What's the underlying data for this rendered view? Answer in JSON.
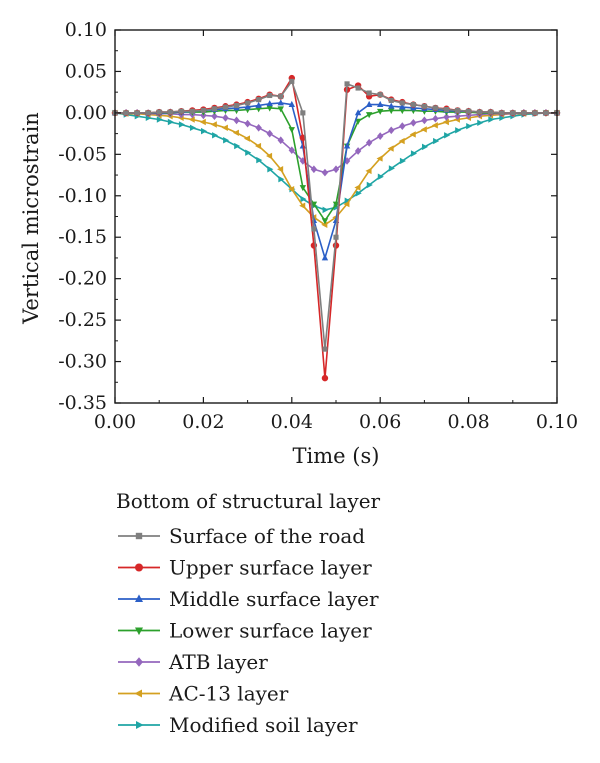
{
  "chart_data": {
    "type": "line",
    "xlabel": "Time (s)",
    "ylabel": "Vertical microstrain",
    "xlim": [
      0.0,
      0.1
    ],
    "ylim": [
      -0.35,
      0.1
    ],
    "xticks": [
      "0.00",
      "0.02",
      "0.04",
      "0.06",
      "0.08",
      "0.10"
    ],
    "yticks": [
      "0.10",
      "0.05",
      "0.00",
      "-0.05",
      "-0.10",
      "-0.15",
      "-0.20",
      "-0.25",
      "-0.30",
      "-0.35"
    ],
    "grid": false,
    "legend_title": "Bottom of structural layer",
    "legend_position": "below",
    "series": [
      {
        "name": "Surface of the road",
        "color": "#7f7f7f",
        "marker": "square",
        "points": [
          [
            0.0,
            0.0
          ],
          [
            0.0025,
            0.0
          ],
          [
            0.005,
            0.0
          ],
          [
            0.0075,
            0.0
          ],
          [
            0.01,
            0.001
          ],
          [
            0.0125,
            0.001
          ],
          [
            0.015,
            0.002
          ],
          [
            0.0175,
            0.002
          ],
          [
            0.02,
            0.003
          ],
          [
            0.0225,
            0.005
          ],
          [
            0.025,
            0.007
          ],
          [
            0.0275,
            0.009
          ],
          [
            0.03,
            0.012
          ],
          [
            0.0325,
            0.016
          ],
          [
            0.035,
            0.021
          ],
          [
            0.0375,
            0.02
          ],
          [
            0.04,
            0.038
          ],
          [
            0.0425,
            0.0
          ],
          [
            0.045,
            -0.14
          ],
          [
            0.0475,
            -0.285
          ],
          [
            0.05,
            -0.15
          ],
          [
            0.0525,
            0.035
          ],
          [
            0.055,
            0.03
          ],
          [
            0.0575,
            0.024
          ],
          [
            0.06,
            0.022
          ],
          [
            0.0625,
            0.015
          ],
          [
            0.065,
            0.012
          ],
          [
            0.0675,
            0.01
          ],
          [
            0.07,
            0.008
          ],
          [
            0.0725,
            0.006
          ],
          [
            0.075,
            0.004
          ],
          [
            0.0775,
            0.003
          ],
          [
            0.08,
            0.002
          ],
          [
            0.0825,
            0.001
          ],
          [
            0.085,
            0.001
          ],
          [
            0.0875,
            0.0
          ],
          [
            0.09,
            0.0
          ],
          [
            0.0925,
            0.0
          ],
          [
            0.095,
            0.0
          ],
          [
            0.0975,
            0.0
          ],
          [
            0.1,
            0.0
          ]
        ]
      },
      {
        "name": "Upper surface layer",
        "color": "#d62728",
        "marker": "circle",
        "points": [
          [
            0.0,
            0.0
          ],
          [
            0.0025,
            0.0
          ],
          [
            0.005,
            0.0
          ],
          [
            0.0075,
            0.0
          ],
          [
            0.01,
            0.001
          ],
          [
            0.0125,
            0.001
          ],
          [
            0.015,
            0.002
          ],
          [
            0.0175,
            0.003
          ],
          [
            0.02,
            0.004
          ],
          [
            0.0225,
            0.006
          ],
          [
            0.025,
            0.008
          ],
          [
            0.0275,
            0.01
          ],
          [
            0.03,
            0.013
          ],
          [
            0.0325,
            0.017
          ],
          [
            0.035,
            0.022
          ],
          [
            0.0375,
            0.02
          ],
          [
            0.04,
            0.042
          ],
          [
            0.0425,
            -0.03
          ],
          [
            0.045,
            -0.16
          ],
          [
            0.0475,
            -0.32
          ],
          [
            0.05,
            -0.16
          ],
          [
            0.0525,
            0.028
          ],
          [
            0.055,
            0.033
          ],
          [
            0.0575,
            0.02
          ],
          [
            0.06,
            0.022
          ],
          [
            0.0625,
            0.016
          ],
          [
            0.065,
            0.013
          ],
          [
            0.0675,
            0.01
          ],
          [
            0.07,
            0.008
          ],
          [
            0.0725,
            0.006
          ],
          [
            0.075,
            0.005
          ],
          [
            0.0775,
            0.003
          ],
          [
            0.08,
            0.002
          ],
          [
            0.0825,
            0.001
          ],
          [
            0.085,
            0.001
          ],
          [
            0.0875,
            0.0
          ],
          [
            0.09,
            0.0
          ],
          [
            0.0925,
            0.0
          ],
          [
            0.095,
            0.0
          ],
          [
            0.0975,
            0.0
          ],
          [
            0.1,
            0.0
          ]
        ]
      },
      {
        "name": "Middle surface layer",
        "color": "#2b5fc7",
        "marker": "triangle-up",
        "points": [
          [
            0.0,
            0.0
          ],
          [
            0.0025,
            0.0
          ],
          [
            0.005,
            0.0
          ],
          [
            0.0075,
            0.0
          ],
          [
            0.01,
            0.0
          ],
          [
            0.0125,
            0.001
          ],
          [
            0.015,
            0.001
          ],
          [
            0.0175,
            0.002
          ],
          [
            0.02,
            0.003
          ],
          [
            0.0225,
            0.004
          ],
          [
            0.025,
            0.005
          ],
          [
            0.0275,
            0.006
          ],
          [
            0.03,
            0.007
          ],
          [
            0.0325,
            0.009
          ],
          [
            0.035,
            0.011
          ],
          [
            0.0375,
            0.012
          ],
          [
            0.04,
            0.01
          ],
          [
            0.0425,
            -0.04
          ],
          [
            0.045,
            -0.13
          ],
          [
            0.0475,
            -0.175
          ],
          [
            0.05,
            -0.13
          ],
          [
            0.0525,
            -0.04
          ],
          [
            0.055,
            0.0
          ],
          [
            0.0575,
            0.01
          ],
          [
            0.06,
            0.01
          ],
          [
            0.0625,
            0.008
          ],
          [
            0.065,
            0.007
          ],
          [
            0.0675,
            0.006
          ],
          [
            0.07,
            0.005
          ],
          [
            0.0725,
            0.004
          ],
          [
            0.075,
            0.003
          ],
          [
            0.0775,
            0.002
          ],
          [
            0.08,
            0.002
          ],
          [
            0.0825,
            0.001
          ],
          [
            0.085,
            0.001
          ],
          [
            0.0875,
            0.0
          ],
          [
            0.09,
            0.0
          ],
          [
            0.0925,
            0.0
          ],
          [
            0.095,
            0.0
          ],
          [
            0.0975,
            0.0
          ],
          [
            0.1,
            0.0
          ]
        ]
      },
      {
        "name": "Lower surface layer",
        "color": "#2ca02c",
        "marker": "triangle-down",
        "points": [
          [
            0.0,
            0.0
          ],
          [
            0.0025,
            0.0
          ],
          [
            0.005,
            0.0
          ],
          [
            0.0075,
            0.0
          ],
          [
            0.01,
            0.0
          ],
          [
            0.0125,
            0.0
          ],
          [
            0.015,
            0.001
          ],
          [
            0.0175,
            0.001
          ],
          [
            0.02,
            0.001
          ],
          [
            0.0225,
            0.002
          ],
          [
            0.025,
            0.003
          ],
          [
            0.0275,
            0.003
          ],
          [
            0.03,
            0.004
          ],
          [
            0.0325,
            0.005
          ],
          [
            0.035,
            0.006
          ],
          [
            0.0375,
            0.005
          ],
          [
            0.04,
            -0.02
          ],
          [
            0.0425,
            -0.09
          ],
          [
            0.045,
            -0.11
          ],
          [
            0.0475,
            -0.13
          ],
          [
            0.05,
            -0.11
          ],
          [
            0.0525,
            -0.04
          ],
          [
            0.055,
            -0.01
          ],
          [
            0.0575,
            -0.002
          ],
          [
            0.06,
            0.002
          ],
          [
            0.0625,
            0.003
          ],
          [
            0.065,
            0.003
          ],
          [
            0.0675,
            0.003
          ],
          [
            0.07,
            0.002
          ],
          [
            0.0725,
            0.002
          ],
          [
            0.075,
            0.001
          ],
          [
            0.0775,
            0.001
          ],
          [
            0.08,
            0.001
          ],
          [
            0.0825,
            0.0
          ],
          [
            0.085,
            0.0
          ],
          [
            0.0875,
            0.0
          ],
          [
            0.09,
            0.0
          ],
          [
            0.0925,
            0.0
          ],
          [
            0.095,
            0.0
          ],
          [
            0.0975,
            0.0
          ],
          [
            0.1,
            0.0
          ]
        ]
      },
      {
        "name": "ATB layer",
        "color": "#9467bd",
        "marker": "diamond",
        "points": [
          [
            0.0,
            0.0
          ],
          [
            0.0025,
            0.0
          ],
          [
            0.005,
            0.0
          ],
          [
            0.0075,
            -0.001
          ],
          [
            0.01,
            -0.001
          ],
          [
            0.0125,
            -0.001
          ],
          [
            0.015,
            -0.002
          ],
          [
            0.0175,
            -0.002
          ],
          [
            0.02,
            -0.003
          ],
          [
            0.0225,
            -0.004
          ],
          [
            0.025,
            -0.006
          ],
          [
            0.0275,
            -0.009
          ],
          [
            0.03,
            -0.013
          ],
          [
            0.0325,
            -0.018
          ],
          [
            0.035,
            -0.025
          ],
          [
            0.0375,
            -0.033
          ],
          [
            0.04,
            -0.045
          ],
          [
            0.0425,
            -0.058
          ],
          [
            0.045,
            -0.068
          ],
          [
            0.0475,
            -0.072
          ],
          [
            0.05,
            -0.068
          ],
          [
            0.0525,
            -0.058
          ],
          [
            0.055,
            -0.046
          ],
          [
            0.0575,
            -0.036
          ],
          [
            0.06,
            -0.028
          ],
          [
            0.0625,
            -0.021
          ],
          [
            0.065,
            -0.016
          ],
          [
            0.0675,
            -0.012
          ],
          [
            0.07,
            -0.009
          ],
          [
            0.0725,
            -0.007
          ],
          [
            0.075,
            -0.005
          ],
          [
            0.0775,
            -0.004
          ],
          [
            0.08,
            -0.003
          ],
          [
            0.0825,
            -0.002
          ],
          [
            0.085,
            -0.001
          ],
          [
            0.0875,
            -0.001
          ],
          [
            0.09,
            -0.001
          ],
          [
            0.0925,
            0.0
          ],
          [
            0.095,
            0.0
          ],
          [
            0.0975,
            0.0
          ],
          [
            0.1,
            0.0
          ]
        ]
      },
      {
        "name": "AC-13 layer",
        "color": "#d4a020",
        "marker": "triangle-left",
        "points": [
          [
            0.0,
            0.0
          ],
          [
            0.0025,
            -0.001
          ],
          [
            0.005,
            -0.001
          ],
          [
            0.0075,
            -0.002
          ],
          [
            0.01,
            -0.003
          ],
          [
            0.0125,
            -0.004
          ],
          [
            0.015,
            -0.006
          ],
          [
            0.0175,
            -0.008
          ],
          [
            0.02,
            -0.011
          ],
          [
            0.0225,
            -0.014
          ],
          [
            0.025,
            -0.018
          ],
          [
            0.0275,
            -0.024
          ],
          [
            0.03,
            -0.031
          ],
          [
            0.0325,
            -0.04
          ],
          [
            0.035,
            -0.052
          ],
          [
            0.0375,
            -0.068
          ],
          [
            0.04,
            -0.092
          ],
          [
            0.0425,
            -0.112
          ],
          [
            0.045,
            -0.126
          ],
          [
            0.0475,
            -0.135
          ],
          [
            0.05,
            -0.126
          ],
          [
            0.0525,
            -0.11
          ],
          [
            0.055,
            -0.09
          ],
          [
            0.0575,
            -0.07
          ],
          [
            0.06,
            -0.055
          ],
          [
            0.0625,
            -0.043
          ],
          [
            0.065,
            -0.034
          ],
          [
            0.0675,
            -0.026
          ],
          [
            0.07,
            -0.02
          ],
          [
            0.0725,
            -0.015
          ],
          [
            0.075,
            -0.011
          ],
          [
            0.0775,
            -0.008
          ],
          [
            0.08,
            -0.006
          ],
          [
            0.0825,
            -0.004
          ],
          [
            0.085,
            -0.003
          ],
          [
            0.0875,
            -0.002
          ],
          [
            0.09,
            -0.001
          ],
          [
            0.0925,
            -0.001
          ],
          [
            0.095,
            0.0
          ],
          [
            0.0975,
            0.0
          ],
          [
            0.1,
            0.0
          ]
        ]
      },
      {
        "name": "Modified soil layer",
        "color": "#1fa5a5",
        "marker": "triangle-right",
        "points": [
          [
            0.0,
            0.0
          ],
          [
            0.0025,
            -0.002
          ],
          [
            0.005,
            -0.004
          ],
          [
            0.0075,
            -0.006
          ],
          [
            0.01,
            -0.008
          ],
          [
            0.0125,
            -0.011
          ],
          [
            0.015,
            -0.014
          ],
          [
            0.0175,
            -0.018
          ],
          [
            0.02,
            -0.022
          ],
          [
            0.0225,
            -0.027
          ],
          [
            0.025,
            -0.033
          ],
          [
            0.0275,
            -0.04
          ],
          [
            0.03,
            -0.048
          ],
          [
            0.0325,
            -0.057
          ],
          [
            0.035,
            -0.068
          ],
          [
            0.0375,
            -0.08
          ],
          [
            0.04,
            -0.092
          ],
          [
            0.0425,
            -0.104
          ],
          [
            0.045,
            -0.112
          ],
          [
            0.0475,
            -0.117
          ],
          [
            0.05,
            -0.114
          ],
          [
            0.0525,
            -0.106
          ],
          [
            0.055,
            -0.097
          ],
          [
            0.0575,
            -0.087
          ],
          [
            0.06,
            -0.077
          ],
          [
            0.0625,
            -0.067
          ],
          [
            0.065,
            -0.058
          ],
          [
            0.0675,
            -0.049
          ],
          [
            0.07,
            -0.041
          ],
          [
            0.0725,
            -0.034
          ],
          [
            0.075,
            -0.027
          ],
          [
            0.0775,
            -0.021
          ],
          [
            0.08,
            -0.016
          ],
          [
            0.0825,
            -0.012
          ],
          [
            0.085,
            -0.008
          ],
          [
            0.0875,
            -0.006
          ],
          [
            0.09,
            -0.004
          ],
          [
            0.0925,
            -0.002
          ],
          [
            0.095,
            -0.001
          ],
          [
            0.0975,
            0.0
          ],
          [
            0.1,
            0.0
          ]
        ]
      }
    ]
  }
}
